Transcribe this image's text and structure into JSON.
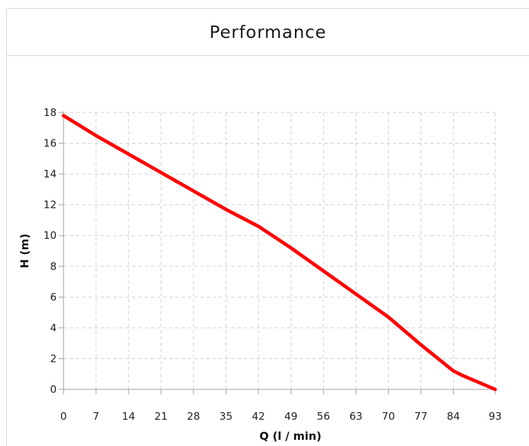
{
  "panel": {
    "title": "Performance"
  },
  "chart_data": {
    "type": "line",
    "title": "Performance",
    "xlabel": "Q (l / min)",
    "ylabel": "H (m)",
    "xlim": [
      0,
      93
    ],
    "ylim": [
      0,
      18
    ],
    "x_ticks": [
      0,
      7,
      14,
      21,
      28,
      35,
      42,
      49,
      56,
      63,
      70,
      77,
      84,
      93
    ],
    "y_ticks": [
      0,
      2,
      4,
      6,
      8,
      10,
      12,
      14,
      16,
      18
    ],
    "grid": true,
    "line_color": "#ff0000",
    "series": [
      {
        "x": [
          0,
          7,
          14,
          21,
          28,
          35,
          42,
          45,
          49,
          56,
          63,
          70,
          77,
          84,
          86,
          93
        ],
        "y": [
          17.8,
          16.5,
          15.3,
          14.1,
          12.9,
          11.7,
          10.6,
          10.0,
          9.2,
          7.7,
          6.2,
          4.7,
          2.9,
          1.2,
          0.9,
          0.0
        ]
      }
    ]
  }
}
